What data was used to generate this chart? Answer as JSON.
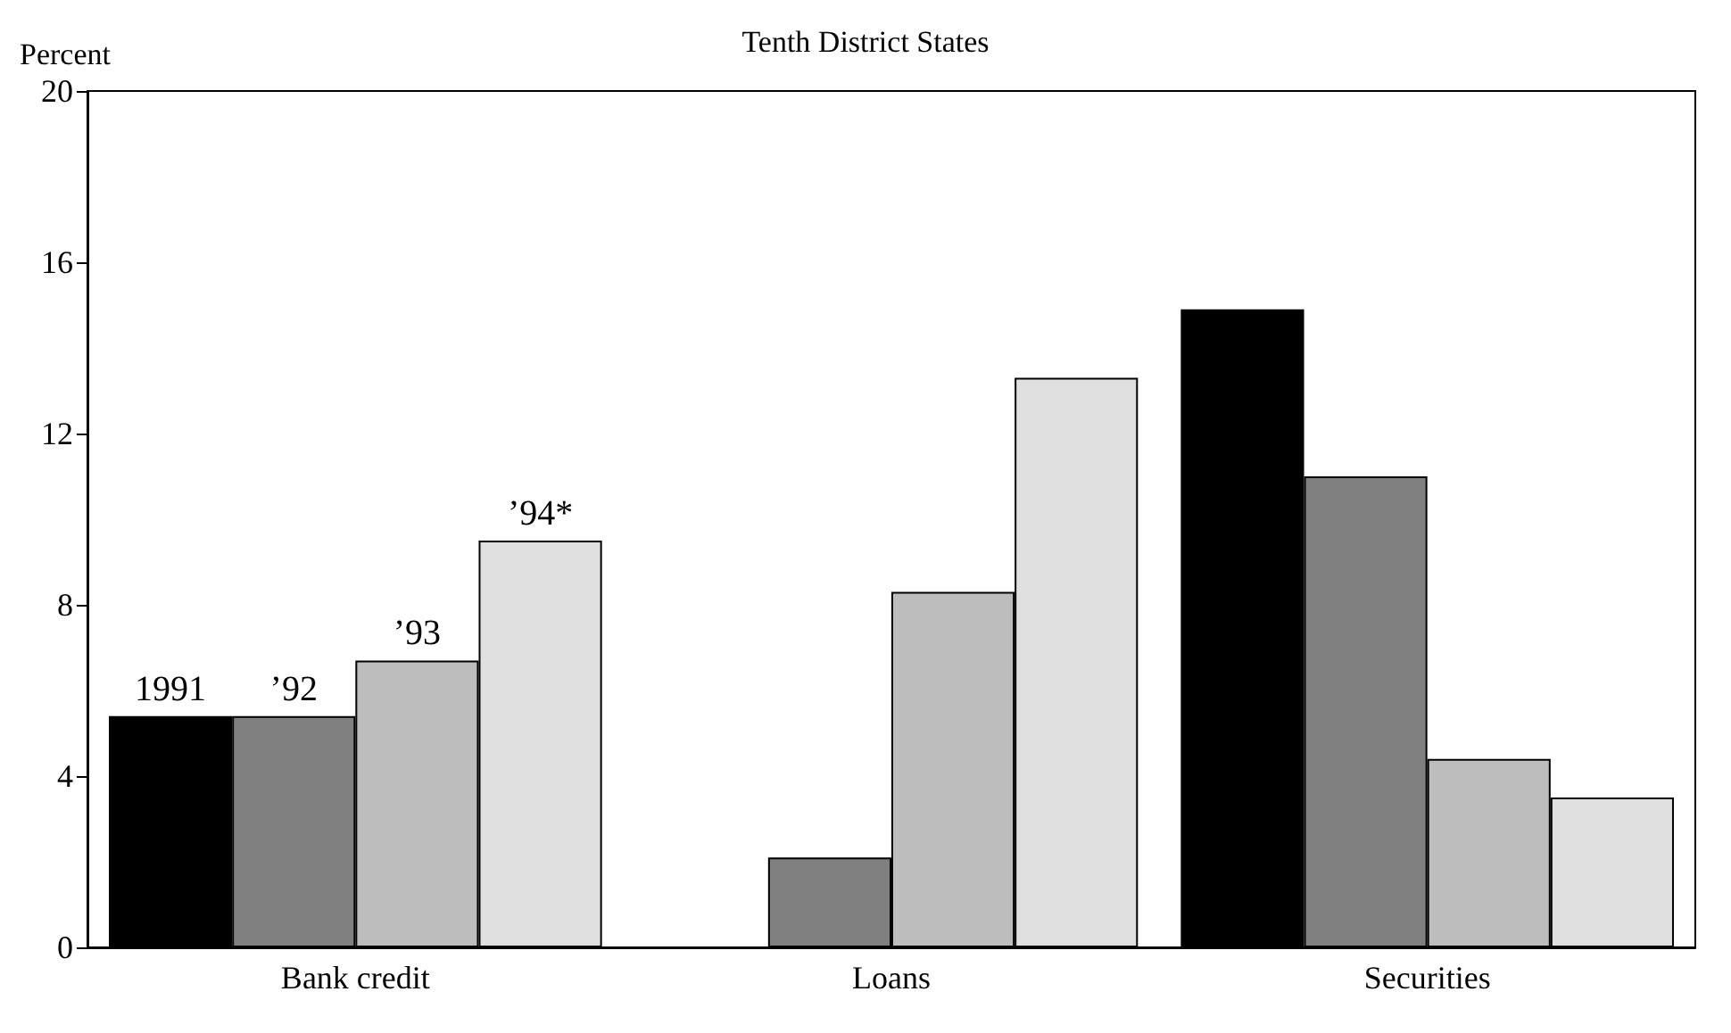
{
  "chart_data": {
    "type": "bar",
    "title": "Tenth District States",
    "ylabel": "Percent",
    "categories": [
      "Bank credit",
      "Loans",
      "Securities"
    ],
    "series": [
      {
        "name": "1991",
        "color": "#000000",
        "values": [
          5.4,
          null,
          14.9
        ]
      },
      {
        "name": "’92",
        "color": "#808080",
        "values": [
          5.4,
          2.1,
          11.0
        ]
      },
      {
        "name": "’93",
        "color": "#bdbdbd",
        "values": [
          6.7,
          8.3,
          4.4
        ]
      },
      {
        "name": "’94*",
        "color": "#e0e0e0",
        "values": [
          9.5,
          13.3,
          3.5
        ]
      }
    ],
    "ylim": [
      0,
      20
    ],
    "yticks": [
      0,
      4,
      8,
      12,
      16,
      20
    ],
    "legend": false
  }
}
